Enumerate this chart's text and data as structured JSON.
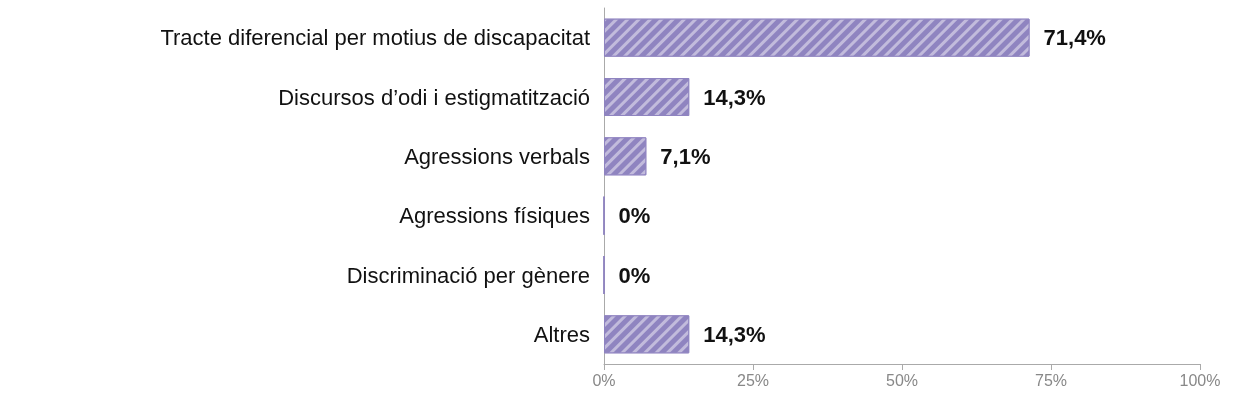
{
  "chart_data": {
    "type": "bar",
    "orientation": "horizontal",
    "categories": [
      "Tracte diferencial per motius de discapacitat",
      "Discursos d’odi i estigmatització",
      "Agressions verbals",
      "Agressions físiques",
      "Discriminació per gènere",
      "Altres"
    ],
    "values": [
      71.4,
      14.3,
      7.1,
      0,
      0,
      14.3
    ],
    "color": "#8f84c0",
    "value_labels": [
      "71,4%",
      "14,3%",
      "7,1%",
      "0%",
      "0%",
      "14,3%"
    ],
    "xlim": [
      0,
      100
    ],
    "xticks": [
      {
        "value": 0,
        "label": "0%"
      },
      {
        "value": 25,
        "label": "25%"
      },
      {
        "value": 50,
        "label": "50%"
      },
      {
        "value": 75,
        "label": "75%"
      },
      {
        "value": 100,
        "label": "100%"
      }
    ],
    "grid": false
  }
}
